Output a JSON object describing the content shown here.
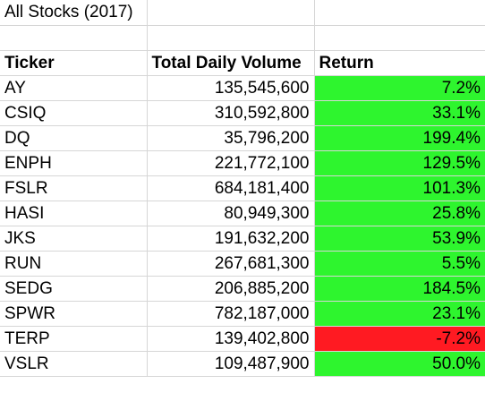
{
  "sheet": {
    "title": "All Stocks (2017)",
    "headers": {
      "ticker": "Ticker",
      "volume": "Total Daily Volume",
      "return": "Return"
    },
    "colors": {
      "positive_fill": "#2ef52e",
      "negative_fill": "#ff1a22",
      "gridline": "#d6d6d6"
    },
    "rows": [
      {
        "ticker": "AY",
        "volume": "135,545,600",
        "return": "7.2%",
        "positive": true
      },
      {
        "ticker": "CSIQ",
        "volume": "310,592,800",
        "return": "33.1%",
        "positive": true
      },
      {
        "ticker": "DQ",
        "volume": "35,796,200",
        "return": "199.4%",
        "positive": true
      },
      {
        "ticker": "ENPH",
        "volume": "221,772,100",
        "return": "129.5%",
        "positive": true
      },
      {
        "ticker": "FSLR",
        "volume": "684,181,400",
        "return": "101.3%",
        "positive": true
      },
      {
        "ticker": "HASI",
        "volume": "80,949,300",
        "return": "25.8%",
        "positive": true
      },
      {
        "ticker": "JKS",
        "volume": "191,632,200",
        "return": "53.9%",
        "positive": true
      },
      {
        "ticker": "RUN",
        "volume": "267,681,300",
        "return": "5.5%",
        "positive": true
      },
      {
        "ticker": "SEDG",
        "volume": "206,885,200",
        "return": "184.5%",
        "positive": true
      },
      {
        "ticker": "SPWR",
        "volume": "782,187,000",
        "return": "23.1%",
        "positive": true
      },
      {
        "ticker": "TERP",
        "volume": "139,402,800",
        "return": "-7.2%",
        "positive": false
      },
      {
        "ticker": "VSLR",
        "volume": "109,487,900",
        "return": "50.0%",
        "positive": true
      }
    ]
  }
}
